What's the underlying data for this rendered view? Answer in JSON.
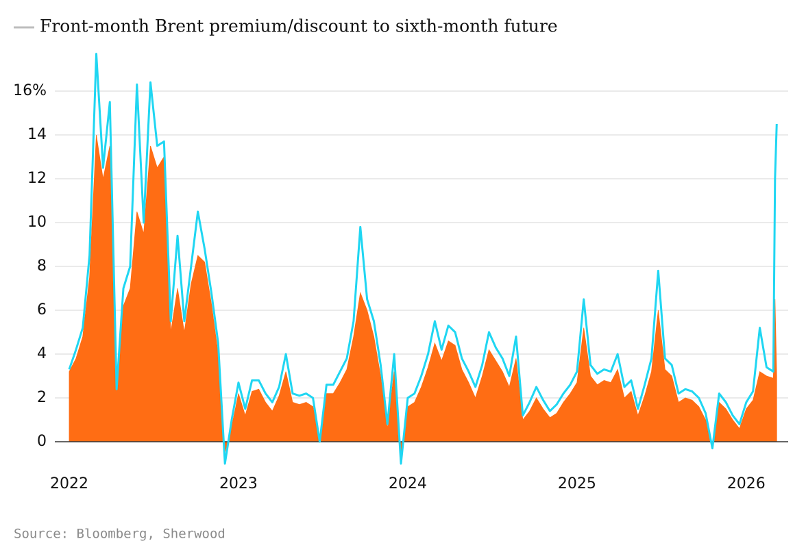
{
  "chart_data": {
    "type": "area-line",
    "legend": "Front-month Brent premium/discount to sixth-month future",
    "legend_color": "#bdbdbd",
    "source": "Source: Bloomberg, Sherwood",
    "x": [
      2022,
      2022.04,
      2022.08,
      2022.12,
      2022.16,
      2022.2,
      2022.24,
      2022.28,
      2022.32,
      2022.36,
      2022.4,
      2022.44,
      2022.48,
      2022.52,
      2022.56,
      2022.6,
      2022.64,
      2022.68,
      2022.72,
      2022.76,
      2022.8,
      2022.84,
      2022.88,
      2022.92,
      2022.96,
      2023,
      2023.04,
      2023.08,
      2023.12,
      2023.16,
      2023.2,
      2023.24,
      2023.28,
      2023.32,
      2023.36,
      2023.4,
      2023.44,
      2023.48,
      2023.52,
      2023.56,
      2023.6,
      2023.64,
      2023.68,
      2023.72,
      2023.76,
      2023.8,
      2023.84,
      2023.88,
      2023.92,
      2023.96,
      2024,
      2024.04,
      2024.08,
      2024.12,
      2024.16,
      2024.2,
      2024.24,
      2024.28,
      2024.32,
      2024.36,
      2024.4,
      2024.44,
      2024.48,
      2024.52,
      2024.56,
      2024.6,
      2024.64,
      2024.68,
      2024.72,
      2024.76,
      2024.8,
      2024.84,
      2024.88,
      2024.92,
      2024.96,
      2025,
      2025.04,
      2025.08,
      2025.12,
      2025.16,
      2025.2,
      2025.24,
      2025.28,
      2025.32,
      2025.36,
      2025.4,
      2025.44,
      2025.48,
      2025.52,
      2025.56,
      2025.6,
      2025.64,
      2025.68,
      2025.72,
      2025.76,
      2025.8,
      2025.84,
      2025.88,
      2025.92,
      2025.96,
      2026,
      2026.04,
      2026.08,
      2026.12,
      2026.16,
      2026.17,
      2026.18
    ],
    "series": [
      {
        "color": "#ff6d14",
        "kind": "area",
        "values": [
          3.2,
          3.8,
          4.8,
          7.5,
          14,
          12,
          13.5,
          2.4,
          6.2,
          7,
          10.5,
          9.5,
          13.5,
          12.5,
          13,
          5,
          7,
          5,
          7.2,
          8.5,
          8.2,
          6.3,
          4,
          -0.5,
          0.7,
          2.2,
          1.2,
          2.3,
          2.4,
          1.8,
          1.4,
          2.1,
          3.2,
          1.8,
          1.7,
          1.8,
          1.6,
          0,
          2.2,
          2.2,
          2.7,
          3.3,
          4.8,
          6.8,
          6,
          4.8,
          3,
          0.6,
          3.2,
          -0.5,
          1.6,
          1.8,
          2.5,
          3.4,
          4.5,
          3.7,
          4.6,
          4.4,
          3.3,
          2.7,
          2,
          3,
          4.2,
          3.7,
          3.2,
          2.5,
          3.8,
          1,
          1.4,
          2,
          1.5,
          1.1,
          1.3,
          1.8,
          2.2,
          2.7,
          5.2,
          3,
          2.6,
          2.8,
          2.7,
          3.3,
          2,
          2.3,
          1.2,
          2.1,
          3.2,
          6,
          3.3,
          3,
          1.8,
          2,
          1.9,
          1.6,
          1,
          -0.2,
          1.8,
          1.5,
          1,
          0.6,
          1.5,
          1.9,
          3.2,
          3,
          2.9,
          6.5,
          3
        ]
      },
      {
        "color": "#1fd6f2",
        "kind": "line",
        "values": [
          3.3,
          4.2,
          5.2,
          8.5,
          17.7,
          12.5,
          15.5,
          2.4,
          7,
          8,
          16.3,
          10,
          16.4,
          13.5,
          13.7,
          5.5,
          9.4,
          5.5,
          8,
          10.5,
          8.8,
          6.8,
          4.5,
          -1,
          1,
          2.7,
          1.5,
          2.8,
          2.8,
          2.2,
          1.8,
          2.5,
          4,
          2.2,
          2.1,
          2.2,
          2,
          0,
          2.6,
          2.6,
          3.2,
          3.8,
          5.5,
          9.8,
          6.5,
          5.5,
          3.5,
          0.8,
          4,
          -1,
          2,
          2.2,
          3,
          4,
          5.5,
          4.2,
          5.3,
          5,
          3.8,
          3.2,
          2.5,
          3.5,
          5,
          4.3,
          3.8,
          3,
          4.8,
          1.2,
          1.8,
          2.5,
          1.9,
          1.4,
          1.7,
          2.2,
          2.6,
          3.2,
          6.5,
          3.5,
          3.1,
          3.3,
          3.2,
          4,
          2.5,
          2.8,
          1.5,
          2.6,
          3.8,
          7.8,
          3.8,
          3.5,
          2.2,
          2.4,
          2.3,
          2,
          1.3,
          -0.3,
          2.2,
          1.8,
          1.2,
          0.8,
          1.8,
          2.3,
          5.2,
          3.4,
          3.2,
          12,
          14.5
        ]
      }
    ],
    "xlim": [
      2021.9,
      2026.3
    ],
    "xticks": [
      2022,
      2023,
      2024,
      2025,
      2026
    ],
    "ylim": [
      -1.2,
      17.8
    ],
    "yticks": [
      0,
      2,
      4,
      6,
      8,
      10,
      12,
      14,
      {
        "value": 16,
        "label": "16%"
      }
    ],
    "grid": true
  }
}
